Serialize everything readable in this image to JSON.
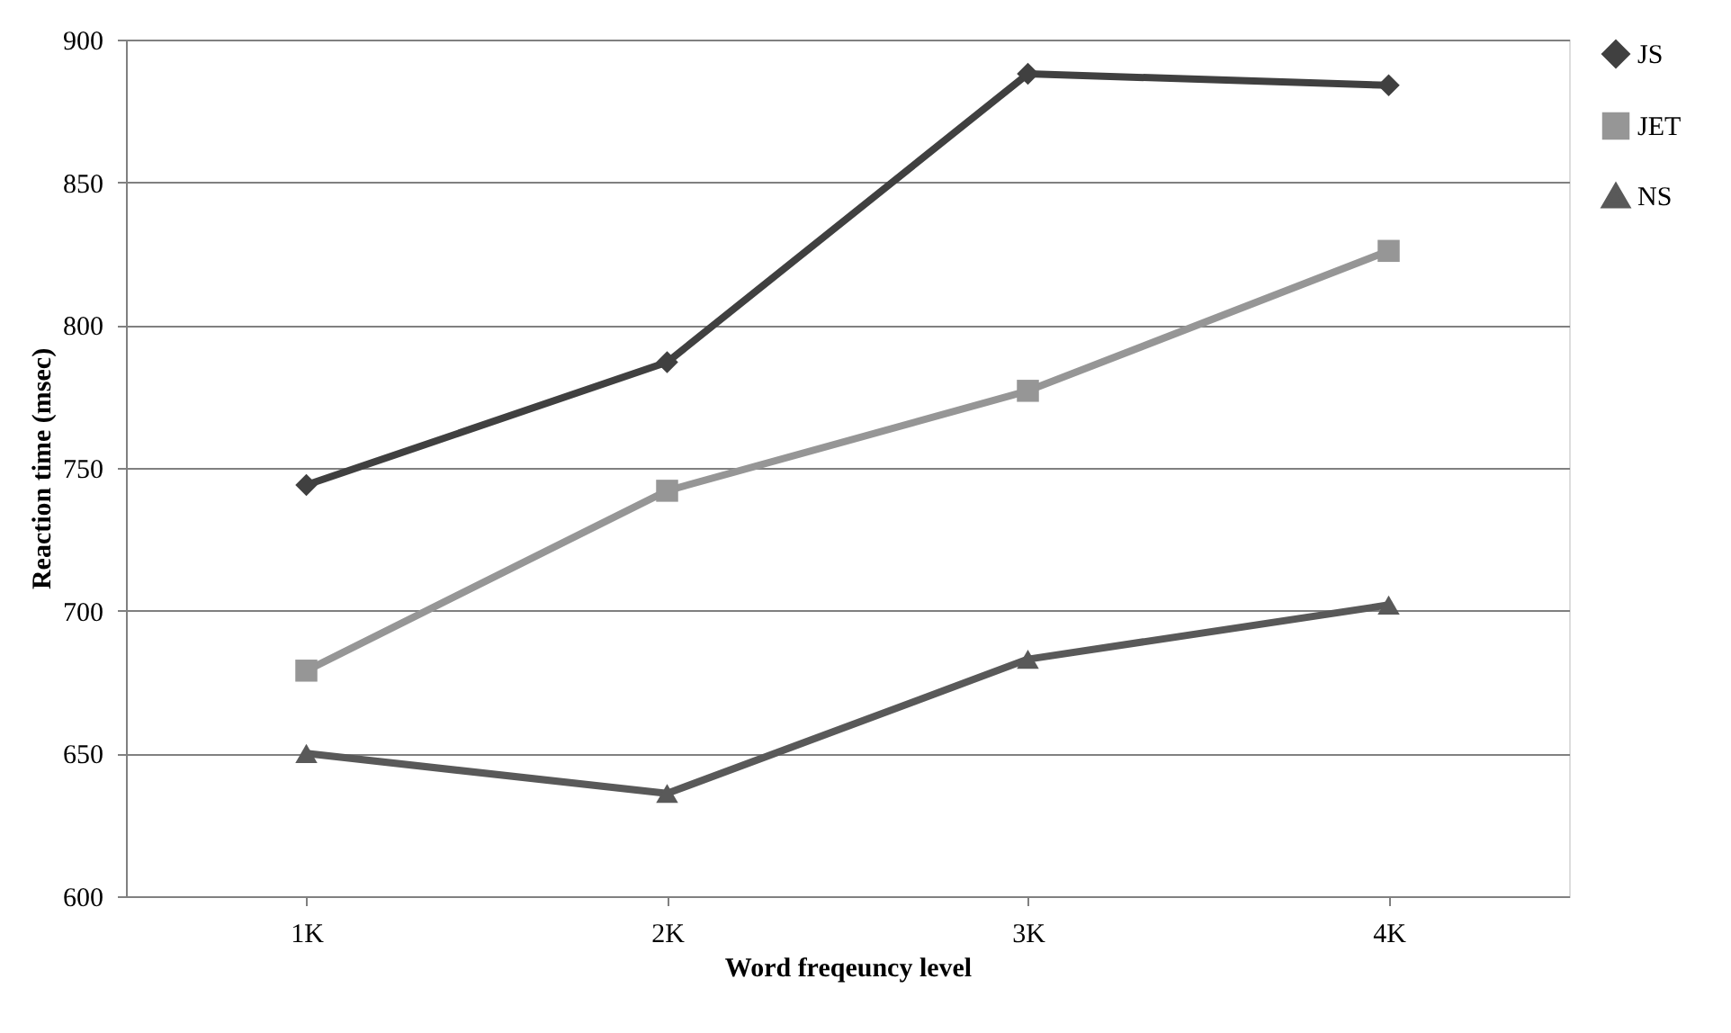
{
  "chart_data": {
    "type": "line",
    "xlabel": "Word freqeuncy level",
    "ylabel": "Reaction time (msec)",
    "categories": [
      "1K",
      "2K",
      "3K",
      "4K"
    ],
    "series": [
      {
        "name": "JS",
        "color": "#404040",
        "marker": "diamond",
        "values": [
          744,
          787,
          888,
          884
        ]
      },
      {
        "name": "JET",
        "color": "#969696",
        "marker": "square",
        "values": [
          679,
          742,
          777,
          826
        ]
      },
      {
        "name": "NS",
        "color": "#595959",
        "marker": "triangle",
        "values": [
          650,
          636,
          683,
          702
        ]
      }
    ],
    "ylim": [
      600,
      900
    ],
    "yticks": [
      600,
      650,
      700,
      750,
      800,
      850,
      900
    ],
    "grid": "y",
    "legend": "right",
    "line_style": "solid"
  }
}
